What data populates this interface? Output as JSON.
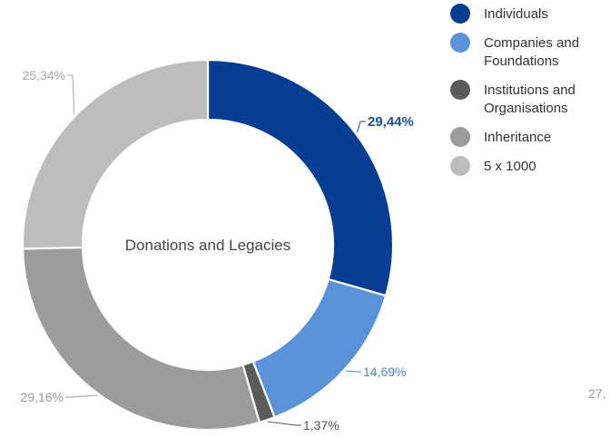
{
  "chart_data": {
    "type": "pie",
    "center_label": "Donations and Legacies",
    "categories": [
      "Individuals",
      "Companies and\nFoundations",
      "Institutions and\nOrganisations",
      "Inheritance",
      "5 x 1000"
    ],
    "values": [
      29.44,
      14.69,
      1.37,
      29.16,
      25.34
    ],
    "value_labels": [
      "29,44%",
      "14,69%",
      "1,37%",
      "29,16%",
      "25,34%"
    ],
    "colors": [
      "#073e94",
      "#5a93d8",
      "#5b5b5b",
      "#9c9c9c",
      "#bdbdbd"
    ],
    "label_colors": [
      "#1f4f9c",
      "#4e86cc",
      "#555555",
      "#9a9a9a",
      "#a8a8a8"
    ],
    "legend": {
      "placement": "right"
    }
  },
  "edge_text": "27,"
}
